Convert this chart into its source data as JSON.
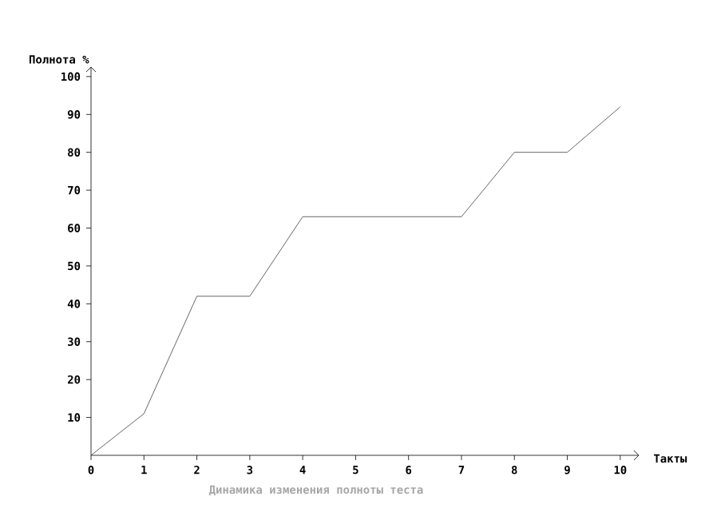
{
  "chart_data": {
    "type": "line",
    "title": "Динамика изменения полноты теста",
    "xlabel": "Такты",
    "ylabel": "Полнота %",
    "x": [
      0,
      1,
      2,
      3,
      4,
      5,
      6,
      7,
      8,
      9,
      10
    ],
    "series": [
      {
        "color": "#404040",
        "values": [
          0,
          11,
          42,
          42,
          63,
          63,
          63,
          63,
          80,
          80,
          92
        ]
      }
    ],
    "xlim": [
      0,
      10.35
    ],
    "ylim": [
      0,
      102.5
    ],
    "xticks": [
      0,
      1,
      2,
      3,
      4,
      5,
      6,
      7,
      8,
      9,
      10
    ],
    "yticks": [
      10,
      20,
      30,
      40,
      50,
      60,
      70,
      80,
      90,
      100
    ],
    "grid": false,
    "marker": "none",
    "line_style": "solid"
  }
}
